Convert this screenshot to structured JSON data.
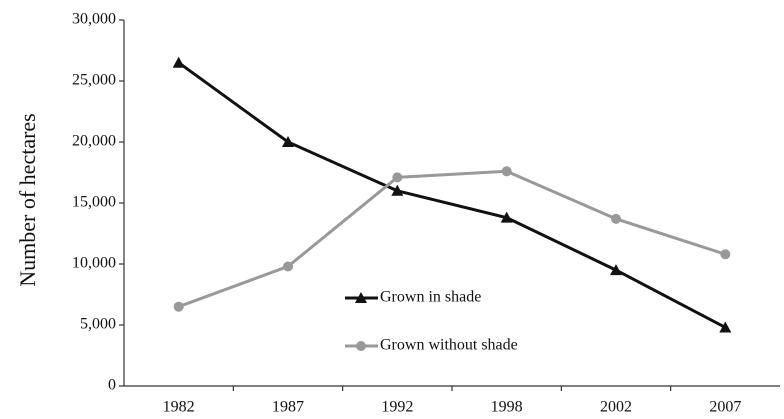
{
  "chart_data": {
    "type": "line",
    "y_label": "Number of hectares",
    "categories": [
      "1982",
      "1987",
      "1992",
      "1998",
      "2002",
      "2007"
    ],
    "series": [
      {
        "name": "Grown in shade",
        "color": "#111111",
        "marker": "triangle",
        "values": [
          26500,
          20000,
          16000,
          13800,
          9500,
          4800
        ]
      },
      {
        "name": "Grown without shade",
        "color": "#999999",
        "marker": "circle",
        "values": [
          6500,
          9800,
          17100,
          17600,
          13700,
          10800
        ]
      }
    ],
    "ylim": [
      0,
      30000
    ],
    "yticks": [
      0,
      {
        "value": 5000,
        "label": "5,000"
      },
      {
        "value": 10000,
        "label": "10,000"
      },
      {
        "value": 15000,
        "label": "15,000"
      },
      {
        "value": 20000,
        "label": "20,000"
      },
      {
        "value": 25000,
        "label": "25,000"
      },
      {
        "value": 30000,
        "label": "30,000"
      }
    ],
    "grid": false
  }
}
